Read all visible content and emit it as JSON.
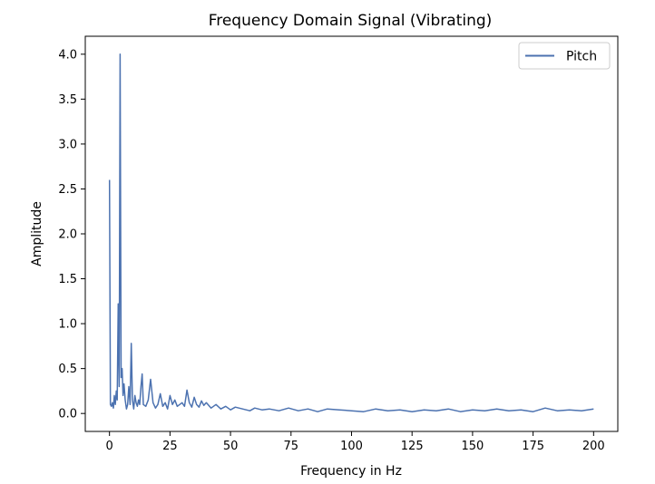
{
  "chart_data": {
    "type": "line",
    "title": "Frequency Domain Signal (Vibrating)",
    "xlabel": "Frequency in Hz",
    "ylabel": "Amplitude",
    "xlim": [
      -10,
      210
    ],
    "ylim": [
      -0.2,
      4.2
    ],
    "x_ticks": [
      0,
      25,
      50,
      75,
      100,
      125,
      150,
      175,
      200
    ],
    "x_tick_labels": [
      "0",
      "25",
      "50",
      "75",
      "100",
      "125",
      "150",
      "175",
      "200"
    ],
    "y_ticks": [
      0.0,
      0.5,
      1.0,
      1.5,
      2.0,
      2.5,
      3.0,
      3.5,
      4.0
    ],
    "y_tick_labels": [
      "0.0",
      "0.5",
      "1.0",
      "1.5",
      "2.0",
      "2.5",
      "3.0",
      "3.5",
      "4.0"
    ],
    "grid": false,
    "legend_position": "top-right",
    "color": "#4c72b0",
    "series": [
      {
        "name": "Pitch",
        "x": [
          0,
          0.4,
          0.8,
          1.2,
          1.6,
          2.0,
          2.4,
          2.8,
          3.2,
          3.6,
          4.0,
          4.4,
          4.8,
          5.2,
          5.6,
          6.0,
          6.5,
          7.0,
          7.5,
          8.0,
          8.5,
          9.0,
          9.5,
          10,
          10.5,
          11,
          11.5,
          12,
          12.5,
          13,
          13.5,
          14,
          15,
          16,
          17,
          18,
          19,
          20,
          21,
          22,
          23,
          24,
          25,
          26,
          27,
          28,
          29,
          30,
          31,
          32,
          33,
          34,
          35,
          36,
          37,
          38,
          39,
          40,
          42,
          44,
          46,
          48,
          50,
          52,
          55,
          58,
          60,
          63,
          66,
          70,
          74,
          78,
          82,
          86,
          90,
          95,
          100,
          105,
          110,
          115,
          120,
          125,
          130,
          135,
          140,
          145,
          150,
          155,
          160,
          165,
          170,
          175,
          180,
          185,
          190,
          195,
          200
        ],
        "values": [
          2.6,
          0.1,
          0.08,
          0.12,
          0.06,
          0.2,
          0.1,
          0.25,
          0.15,
          1.22,
          0.3,
          4.0,
          0.4,
          0.5,
          0.2,
          0.33,
          0.15,
          0.05,
          0.1,
          0.3,
          0.1,
          0.78,
          0.15,
          0.05,
          0.2,
          0.12,
          0.08,
          0.15,
          0.1,
          0.3,
          0.44,
          0.1,
          0.08,
          0.15,
          0.38,
          0.12,
          0.06,
          0.1,
          0.22,
          0.08,
          0.12,
          0.05,
          0.2,
          0.1,
          0.15,
          0.08,
          0.1,
          0.12,
          0.08,
          0.26,
          0.12,
          0.07,
          0.18,
          0.1,
          0.07,
          0.14,
          0.09,
          0.12,
          0.06,
          0.1,
          0.05,
          0.08,
          0.04,
          0.07,
          0.05,
          0.03,
          0.06,
          0.04,
          0.05,
          0.03,
          0.06,
          0.03,
          0.05,
          0.02,
          0.05,
          0.04,
          0.03,
          0.02,
          0.05,
          0.03,
          0.04,
          0.02,
          0.04,
          0.03,
          0.05,
          0.02,
          0.04,
          0.03,
          0.05,
          0.03,
          0.04,
          0.02,
          0.06,
          0.03,
          0.04,
          0.03,
          0.05
        ]
      }
    ]
  }
}
